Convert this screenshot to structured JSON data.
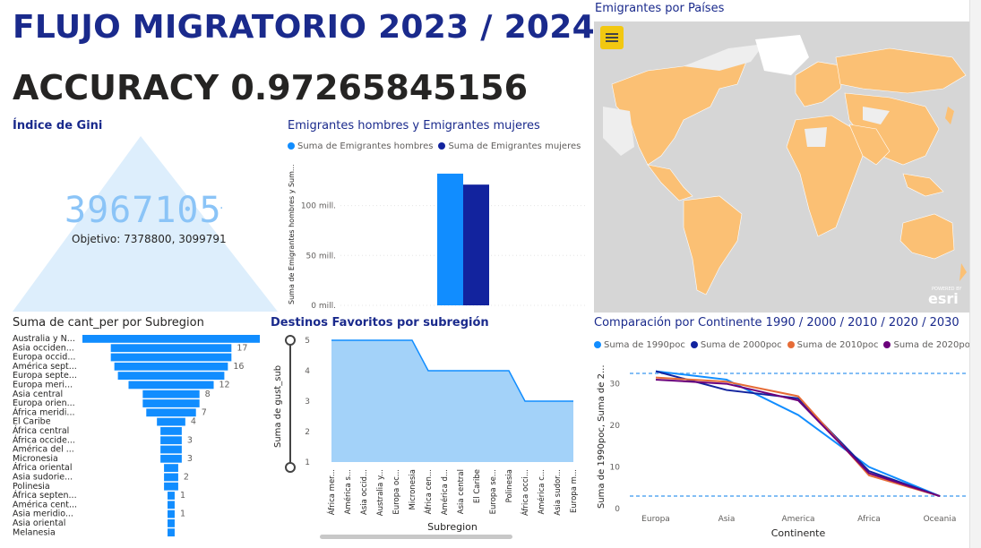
{
  "header": {
    "title": "FLUJO MIGRATORIO 2023 / 2024",
    "accuracy": "ACCURACY 0.97265845156"
  },
  "gini": {
    "title": "Índice de Gini",
    "value": "3967105",
    "target": "Objetivo: 7378800, 3099791"
  },
  "sex_chart": {
    "title": "Emigrantes hombres y Emigrantes mujeres",
    "legend": [
      "Suma de Emigrantes hombres",
      "Suma de Emigrantes mujeres"
    ],
    "ylabel": "Suma de Emigrantes hombres y Sum...",
    "ticks": [
      "100 mill.",
      "50 mill.",
      "0 mill."
    ],
    "colors": [
      "#118dff",
      "#12239e"
    ]
  },
  "map": {
    "title": "Emigrantes por Países",
    "brand": "esri",
    "brand_small": "POWERED BY",
    "menu_icon": "hamburger-icon"
  },
  "subregion_chart": {
    "title": "Suma de cant_per por Subregion",
    "color": "#118dff"
  },
  "destinos_chart": {
    "title": "Destinos Favoritos por subregión",
    "xlabel": "Subregion",
    "ylabel": "Suma de gust_sub",
    "yticks": [
      "5",
      "4",
      "3",
      "2",
      "1"
    ],
    "color": "#9ed0f9"
  },
  "continent_chart": {
    "title": "Comparación por Continente 1990 / 2000 / 2010 / 2020 / 2030",
    "legend": [
      "Suma de 1990poc",
      "Suma de 2000poc",
      "Suma de 2010poc",
      "Suma de 2020poc"
    ],
    "colors": [
      "#118dff",
      "#12239e",
      "#e66c37",
      "#6b007b"
    ],
    "ylabel": "Suma de 1990poc, Suma de 2...",
    "xlabel": "Continente",
    "yticks": [
      "30",
      "20",
      "10",
      "0"
    ]
  },
  "chart_data": [
    {
      "type": "bar",
      "title": "Emigrantes hombres y Emigrantes mujeres",
      "series": [
        {
          "name": "Suma de Emigrantes hombres",
          "values": [
            132
          ]
        },
        {
          "name": "Suma de Emigrantes mujeres",
          "values": [
            121
          ]
        }
      ],
      "categories": [
        ""
      ],
      "ylabel": "Suma de Emigrantes hombres y Sum...",
      "ylim": [
        0,
        140
      ],
      "yunit": "mill.",
      "legend": "top-left"
    },
    {
      "type": "bar",
      "title": "Suma de cant_per por Subregion",
      "orientation": "horizontal",
      "categories": [
        "Australia y N...",
        "Asia occiden...",
        "Europa occid...",
        "América sept...",
        "Europa septe...",
        "Europa meri...",
        "Asia central",
        "Europa orien...",
        "África meridi...",
        "El Caribe",
        "África central",
        "África occide...",
        "América del ...",
        "Micronesia",
        "África oriental",
        "Asia sudorie...",
        "Polinesia",
        "África septen...",
        "América cent...",
        "Asia meridio...",
        "Asia oriental",
        "Melanesia"
      ],
      "values": [
        25,
        17,
        17,
        16,
        15,
        12,
        8,
        8,
        7,
        4,
        3,
        3,
        3,
        3,
        2,
        2,
        2,
        1,
        1,
        1,
        1,
        1
      ],
      "data_labels": [
        "",
        "17",
        "",
        "16",
        "",
        "12",
        "8",
        "",
        "7",
        "4",
        "",
        "3",
        "",
        "3",
        "",
        "2",
        "",
        "1",
        "",
        "1",
        "",
        ""
      ]
    },
    {
      "type": "area",
      "title": "Destinos Favoritos por subregión",
      "categories": [
        "África mer...",
        "América s...",
        "Asia occid...",
        "Australia y...",
        "Europa oc...",
        "Micronesia",
        "África cen...",
        "América d...",
        "Asia central",
        "El Caribe",
        "Europa se...",
        "Polinesia",
        "África occi...",
        "América c...",
        "Asia sudor...",
        "Europa m..."
      ],
      "values": [
        5,
        5,
        5,
        5,
        5,
        5,
        4,
        4,
        4,
        4,
        4,
        4,
        3,
        3,
        3,
        3
      ],
      "xlabel": "Subregion",
      "ylabel": "Suma de gust_sub",
      "ylim": [
        1,
        5
      ]
    },
    {
      "type": "line",
      "title": "Comparación por Continente 1990 / 2000 / 2010 / 2020 / 2030",
      "categories": [
        "Europa",
        "Asia",
        "America",
        "Africa",
        "Oceania"
      ],
      "series": [
        {
          "name": "Suma de 1990poc",
          "values": [
            33,
            31,
            22.5,
            10,
            3
          ]
        },
        {
          "name": "Suma de 2000poc",
          "values": [
            33,
            28.5,
            26.5,
            9,
            3
          ]
        },
        {
          "name": "Suma de 2010poc",
          "values": [
            31.5,
            30.5,
            27,
            8,
            3
          ]
        },
        {
          "name": "Suma de 2020poc",
          "values": [
            31,
            30,
            26,
            8.5,
            3
          ]
        }
      ],
      "xlabel": "Continente",
      "ylabel": "Suma de 1990poc, Suma de 2...",
      "ylim": [
        0,
        34
      ],
      "reference_lines": [
        32.5,
        3
      ],
      "legend": "top-left"
    }
  ]
}
